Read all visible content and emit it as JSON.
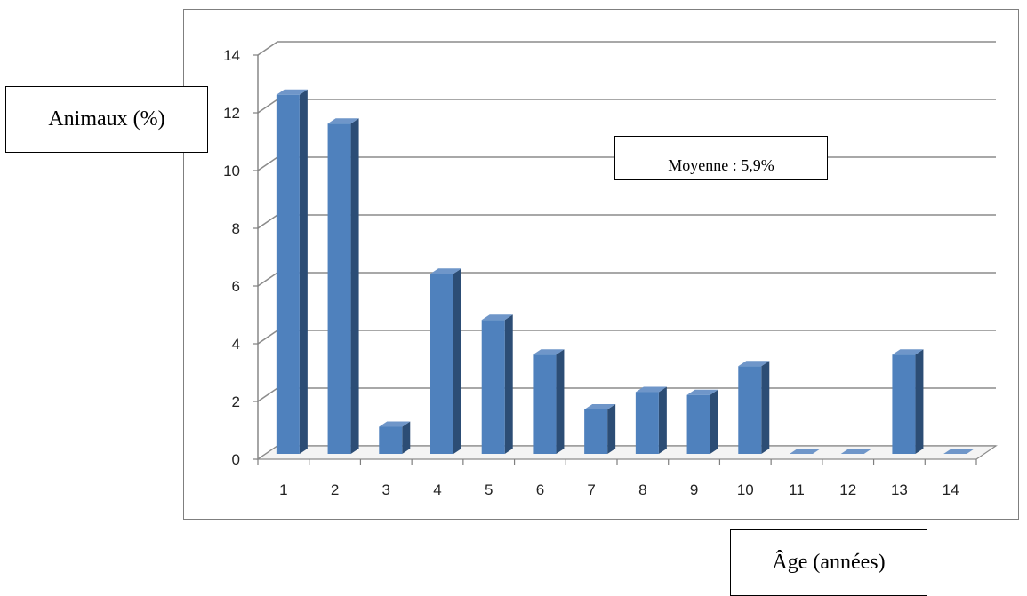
{
  "chart_data": {
    "type": "bar",
    "title": "",
    "xlabel": "Âge (années)",
    "ylabel": "Animaux (%)",
    "annotation": "Moyenne : 5,9%",
    "categories": [
      "1",
      "2",
      "3",
      "4",
      "5",
      "6",
      "7",
      "8",
      "9",
      "10",
      "11",
      "12",
      "13",
      "14"
    ],
    "values": [
      12.5,
      11.5,
      1.0,
      6.3,
      4.7,
      3.5,
      1.6,
      2.2,
      2.1,
      3.1,
      0,
      0,
      3.5,
      0
    ],
    "ylim": [
      0,
      14
    ],
    "yticks": [
      "0",
      "2",
      "4",
      "6",
      "8",
      "10",
      "12",
      "14"
    ],
    "grid": true,
    "legend": "none",
    "bar_color": "#4f81bd",
    "bar_side_color": "#2c4d75",
    "bar_top_color": "#6f96c9",
    "grid_color": "#8c8c8c"
  }
}
